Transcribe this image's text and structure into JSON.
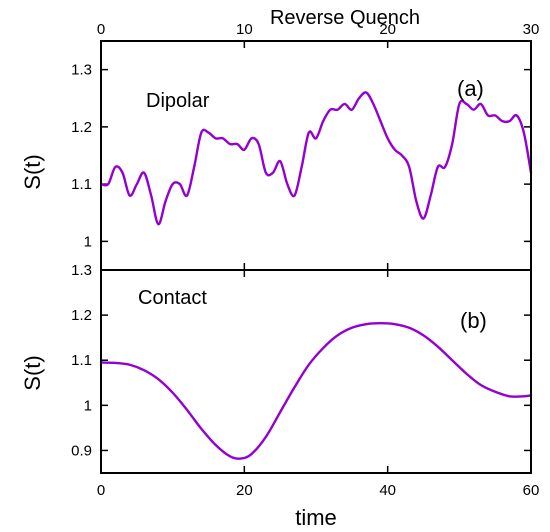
{
  "chart_data": [
    {
      "type": "line",
      "panel": "top",
      "title": "Reverse Quench",
      "panel_label": "(a)",
      "annotation": "Dipolar",
      "ylabel": "S(t)",
      "xlabel": "",
      "xlim": [
        0,
        30
      ],
      "ylim": [
        0.95,
        1.35
      ],
      "xticks": [
        0,
        10,
        20,
        30
      ],
      "xtick_labels": [
        "0",
        "10",
        "20",
        "30"
      ],
      "yticks": [
        1,
        1.1,
        1.2,
        1.3
      ],
      "ytick_labels": [
        "1",
        "1.1",
        "1.2",
        "1.3"
      ],
      "grid": false,
      "series": [
        {
          "color": "#9400d3",
          "x": [
            0,
            0.5,
            1,
            1.5,
            2,
            2.5,
            3,
            3.5,
            4,
            4.5,
            5,
            5.5,
            6,
            6.5,
            7,
            7.5,
            8,
            8.5,
            9,
            9.5,
            10,
            10.5,
            11,
            11.5,
            12,
            12.5,
            13,
            13.5,
            14,
            14.5,
            15,
            15.5,
            16,
            16.5,
            17,
            17.5,
            18,
            18.5,
            19,
            19.5,
            20,
            20.5,
            21,
            21.5,
            22,
            22.5,
            23,
            23.5,
            24,
            24.5,
            25,
            25.5,
            26,
            26.5,
            27,
            27.5,
            28,
            28.5,
            29,
            29.5,
            30
          ],
          "y": [
            1.1,
            1.1,
            1.13,
            1.12,
            1.08,
            1.1,
            1.12,
            1.08,
            1.03,
            1.07,
            1.1,
            1.1,
            1.08,
            1.13,
            1.19,
            1.19,
            1.18,
            1.18,
            1.17,
            1.17,
            1.16,
            1.18,
            1.17,
            1.12,
            1.12,
            1.14,
            1.1,
            1.08,
            1.13,
            1.19,
            1.18,
            1.21,
            1.23,
            1.23,
            1.24,
            1.23,
            1.25,
            1.26,
            1.24,
            1.21,
            1.18,
            1.16,
            1.15,
            1.13,
            1.07,
            1.04,
            1.08,
            1.13,
            1.13,
            1.17,
            1.24,
            1.24,
            1.23,
            1.24,
            1.22,
            1.22,
            1.21,
            1.21,
            1.22,
            1.19,
            1.12
          ]
        }
      ]
    },
    {
      "type": "line",
      "panel": "bottom",
      "title": "",
      "panel_label": "(b)",
      "annotation": "Contact",
      "ylabel": "S(t)",
      "xlabel": "time",
      "xlim": [
        0,
        60
      ],
      "ylim": [
        0.85,
        1.3
      ],
      "xticks": [
        0,
        20,
        40,
        60
      ],
      "xtick_labels": [
        "0",
        "20",
        "40",
        "60"
      ],
      "yticks": [
        0.9,
        1,
        1.1,
        1.2,
        1.3
      ],
      "ytick_labels": [
        "0.9",
        "1",
        "1.1",
        "1.2",
        "1.3"
      ],
      "grid": false,
      "series": [
        {
          "color": "#9400d3",
          "x": [
            0,
            2,
            4,
            6,
            8,
            10,
            12,
            14,
            16,
            18,
            19.5,
            21,
            23,
            25,
            27,
            29,
            31,
            33,
            35,
            37,
            39,
            41,
            43,
            45,
            47,
            49,
            51,
            53,
            55,
            57,
            59,
            60
          ],
          "y": [
            1.095,
            1.094,
            1.09,
            1.078,
            1.058,
            1.028,
            0.99,
            0.948,
            0.912,
            0.887,
            0.882,
            0.892,
            0.93,
            0.985,
            1.04,
            1.09,
            1.127,
            1.155,
            1.172,
            1.18,
            1.182,
            1.18,
            1.172,
            1.155,
            1.13,
            1.1,
            1.07,
            1.045,
            1.03,
            1.02,
            1.02,
            1.022
          ]
        }
      ]
    }
  ]
}
